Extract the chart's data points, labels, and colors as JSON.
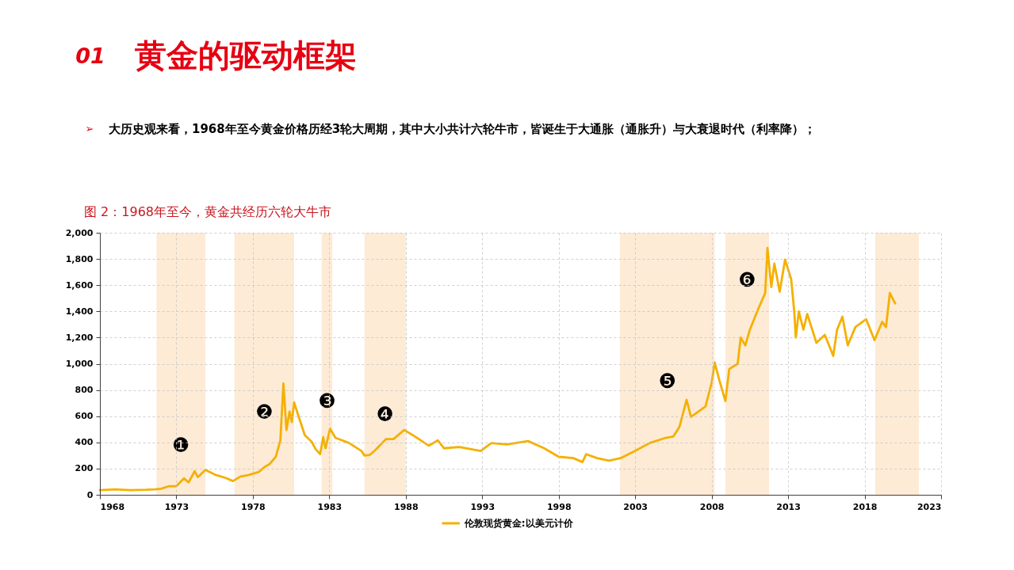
{
  "chart_data": {
    "type": "line",
    "title": "黄金的驱动框架",
    "subtitle": "大历史观来看，1968年至今黄金价格历经3轮大周期，其中大小共计六轮牛市，皆诞生于大通胀（通胀升）与大衰退时代（利率降）；",
    "annotations": [
      "01",
      "➢",
      "图 2：1968年至今，黄金共经历六轮大牛市"
    ],
    "x": [
      1968.0,
      1969.0,
      1970.0,
      1971.0,
      1971.6,
      1972.0,
      1972.5,
      1973.0,
      1973.5,
      1973.8,
      1974.2,
      1974.4,
      1974.9,
      1975.6,
      1976.2,
      1976.7,
      1977.2,
      1977.7,
      1978.4,
      1978.8,
      1979.1,
      1979.5,
      1979.8,
      1980.0,
      1980.2,
      1980.4,
      1980.55,
      1980.7,
      1981.0,
      1981.4,
      1981.85,
      1982.1,
      1982.4,
      1982.6,
      1982.75,
      1983.05,
      1983.4,
      1984.3,
      1985.1,
      1985.3,
      1985.65,
      1986.0,
      1986.7,
      1987.2,
      1987.9,
      1988.6,
      1989.5,
      1990.1,
      1990.5,
      1991.5,
      1992.9,
      1993.6,
      1994.6,
      1996.0,
      1997.05,
      1998.0,
      1998.95,
      1999.55,
      1999.8,
      2000.5,
      2001.3,
      2002.05,
      2003.0,
      2003.95,
      2005.0,
      2005.5,
      2005.9,
      2006.36,
      2006.65,
      2007.6,
      2008.0,
      2008.2,
      2008.5,
      2008.9,
      2009.15,
      2009.7,
      2009.9,
      2010.2,
      2010.5,
      2011.05,
      2011.5,
      2011.65,
      2011.9,
      2012.1,
      2012.45,
      2012.8,
      2013.2,
      2013.4,
      2013.5,
      2013.7,
      2014.0,
      2014.25,
      2014.85,
      2015.4,
      2015.95,
      2016.2,
      2016.55,
      2016.9,
      2017.4,
      2018.1,
      2018.65,
      2019.15,
      2019.4,
      2019.65,
      2020.0
    ],
    "series": [
      {
        "name": "伦敦现货黄金:以美元计价",
        "color": "#f5b000",
        "values": [
          35,
          41,
          35,
          38,
          42,
          46,
          65,
          66,
          125,
          95,
          180,
          135,
          190,
          150,
          130,
          105,
          140,
          150,
          175,
          215,
          235,
          290,
          415,
          850,
          495,
          635,
          555,
          705,
          595,
          455,
          405,
          350,
          310,
          440,
          355,
          505,
          435,
          395,
          335,
          300,
          305,
          340,
          425,
          425,
          495,
          445,
          375,
          415,
          355,
          365,
          335,
          395,
          385,
          410,
          355,
          290,
          280,
          250,
          310,
          280,
          260,
          280,
          335,
          395,
          435,
          445,
          520,
          725,
          595,
          675,
          855,
          1010,
          875,
          715,
          960,
          1000,
          1200,
          1140,
          1260,
          1420,
          1540,
          1885,
          1585,
          1765,
          1550,
          1795,
          1645,
          1400,
          1200,
          1400,
          1260,
          1380,
          1160,
          1220,
          1060,
          1260,
          1360,
          1140,
          1280,
          1340,
          1180,
          1320,
          1280,
          1540,
          1460
        ]
      }
    ],
    "xlim": [
      1968,
      2023
    ],
    "xticks": [
      1968,
      1973,
      1978,
      1983,
      1988,
      1993,
      1998,
      2003,
      2008,
      2013,
      2018,
      2023
    ],
    "ylim": [
      0,
      2000
    ],
    "yticks": [
      0,
      200,
      400,
      600,
      800,
      {
        "value": 1000,
        "label": "1,000"
      },
      {
        "value": 1200,
        "label": "1,200"
      },
      {
        "value": 1400,
        "label": "1,400"
      },
      {
        "value": 1600,
        "label": "1,600"
      },
      {
        "value": 1800,
        "label": "1,800"
      },
      {
        "value": 2000,
        "label": "2,000"
      }
    ],
    "bands": [
      {
        "axis": "x",
        "from": 1971.7,
        "to": 1974.9,
        "color": "#fdebd6",
        "label": "❶"
      },
      {
        "axis": "x",
        "from": 1976.8,
        "to": 1980.7,
        "color": "#fdebd6",
        "label": "❷"
      },
      {
        "axis": "x",
        "from": 1982.5,
        "to": 1983.2,
        "color": "#fdebd6",
        "label": "❸"
      },
      {
        "axis": "x",
        "from": 1985.3,
        "to": 1988.0,
        "color": "#fdebd6",
        "label": "❹"
      },
      {
        "axis": "x",
        "from": 2002.0,
        "to": 2008.2,
        "color": "#fdebd6",
        "label": "❺"
      },
      {
        "axis": "x",
        "from": 2008.9,
        "to": 2011.75,
        "color": "#fdebd6",
        "label": "❻"
      },
      {
        "axis": "x",
        "from": 2018.7,
        "to": 2021.55,
        "color": "#fdebd6"
      }
    ],
    "grid": true,
    "legend": "bottom",
    "line_style": "solid"
  }
}
